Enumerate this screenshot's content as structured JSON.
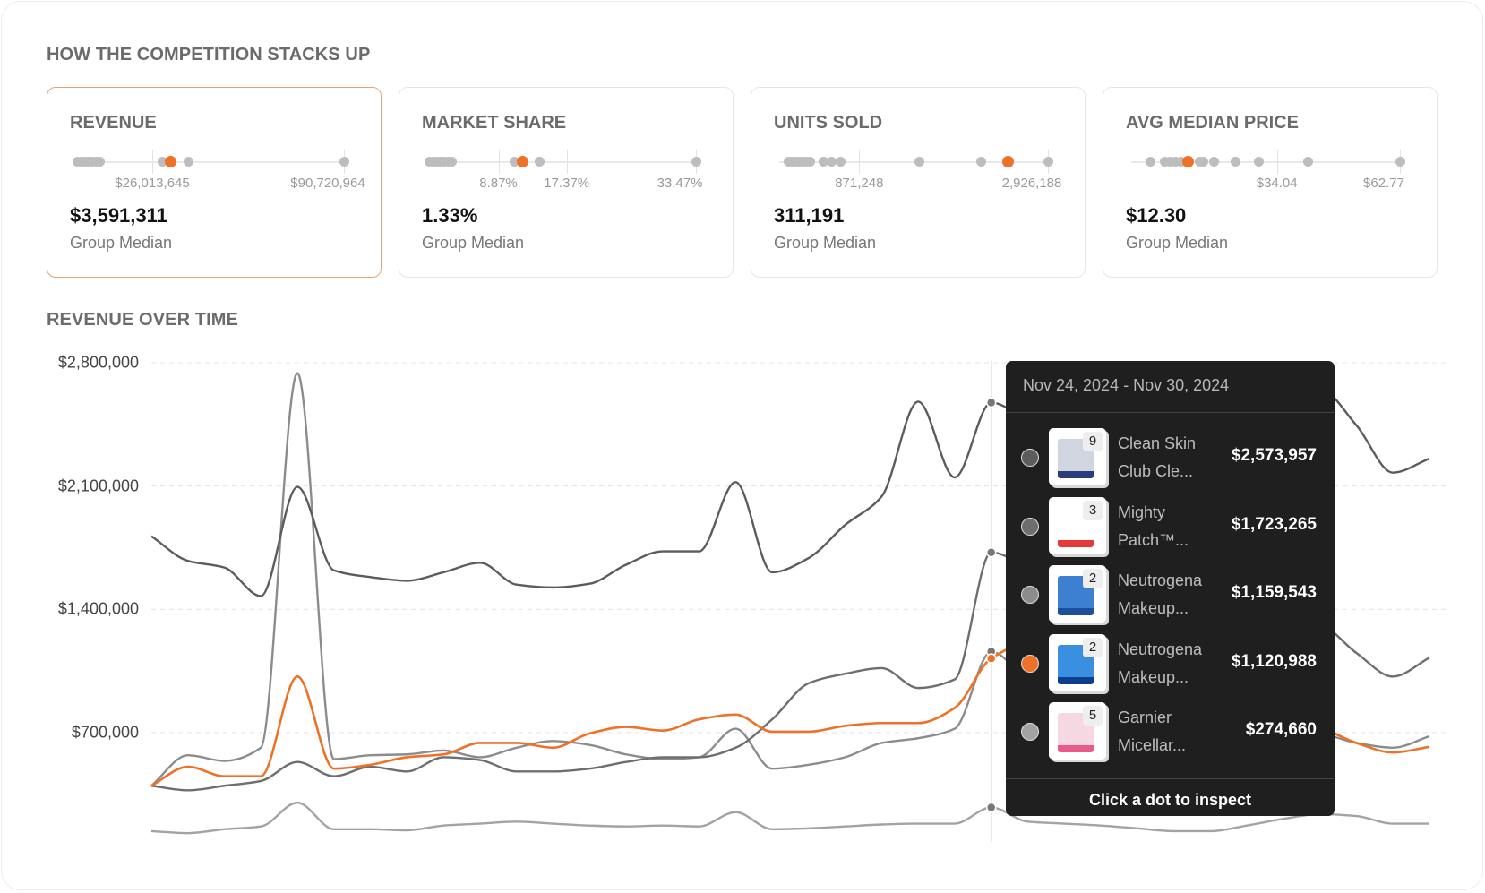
{
  "stacks": {
    "title": "HOW THE COMPETITION STACKS UP",
    "cards": [
      {
        "title": "REVENUE",
        "value": "$3,591,311",
        "sub": "Group Median",
        "active": true,
        "range": [
          0,
          90720964
        ],
        "ticks": [
          {
            "v": 26013645,
            "label": "$26,013,645"
          },
          {
            "v": 90720964,
            "label": "$90,720,964"
          }
        ],
        "dots": [
          640000,
          1900000,
          3200000,
          4500000,
          5700000,
          7000000,
          8300000,
          29400000,
          38300000,
          90720964
        ],
        "highlight": 32300000
      },
      {
        "title": "MARKET SHARE",
        "value": "1.33%",
        "sub": "Group Median",
        "active": false,
        "range": [
          0,
          33.47
        ],
        "ticks": [
          {
            "v": 8.87,
            "label": "8.87%"
          },
          {
            "v": 17.37,
            "label": "17.37%"
          },
          {
            "v": 33.47,
            "label": "33.47%"
          }
        ],
        "dots": [
          0.23,
          0.7,
          1.2,
          1.6,
          2.1,
          2.6,
          3.1,
          10.9,
          14.0,
          33.47
        ],
        "highlight": 11.9
      },
      {
        "title": "UNITS SOLD",
        "value": "311,191",
        "sub": "Group Median",
        "active": false,
        "range": [
          0,
          2926188
        ],
        "ticks": [
          {
            "v": 871248,
            "label": "871,248"
          },
          {
            "v": 2926188,
            "label": "2,926,188"
          }
        ],
        "dots": [
          100000,
          140000,
          180000,
          220000,
          261000,
          301000,
          341000,
          481000,
          571000,
          671000,
          1523000,
          2195000,
          2926188
        ],
        "highlight": 2495000
      },
      {
        "title": "AVG MEDIAN PRICE",
        "value": "$12.30",
        "sub": "Group Median",
        "active": false,
        "range": [
          0,
          62.77
        ],
        "ticks": [
          {
            "v": 34.04,
            "label": "$34.04"
          },
          {
            "v": 62.77,
            "label": "$62.77"
          }
        ],
        "dots": [
          4.54,
          7.85,
          9.09,
          10.33,
          11.56,
          16.11,
          16.93,
          19.41,
          24.37,
          29.73,
          41.3,
          62.77
        ],
        "highlight": 13.22
      }
    ]
  },
  "revenue_chart": {
    "title": "REVENUE OVER TIME"
  },
  "chart_data": {
    "type": "line",
    "title": "REVENUE OVER TIME",
    "xlabel": "",
    "ylabel": "",
    "x": "weekly periods (unlabeled)",
    "ylim": [
      0,
      2800000
    ],
    "y_ticks": [
      {
        "v": 2800000,
        "label": "$2,800,000"
      },
      {
        "v": 2100000,
        "label": "$2,100,000"
      },
      {
        "v": 1400000,
        "label": "$1,400,000"
      },
      {
        "v": 700000,
        "label": "$700,000"
      }
    ],
    "grid": true,
    "hover_index": 23,
    "series": [
      {
        "name": "Clean Skin Club Cle...",
        "color": "#5c5c5c",
        "values": [
          1815000,
          1675000,
          1637000,
          1475000,
          2095000,
          1621000,
          1583000,
          1562000,
          1610000,
          1664000,
          1540000,
          1524000,
          1545000,
          1653000,
          1729000,
          1729000,
          2122000,
          1610000,
          1691000,
          1879000,
          2041000,
          2579000,
          2149000,
          2573957,
          2499000,
          2552000,
          2606000,
          2660000,
          2714000,
          2660000,
          2687000,
          2617000,
          2649000,
          2445000,
          2176000,
          2256000
        ]
      },
      {
        "name": "Mighty Patch™...",
        "color": "#6e6e6e",
        "values": [
          398000,
          372000,
          398000,
          425000,
          533000,
          452000,
          506000,
          479000,
          560000,
          544000,
          479000,
          479000,
          495000,
          533000,
          560000,
          560000,
          614000,
          775000,
          980000,
          1034000,
          1066000,
          953000,
          1002000,
          1723265,
          1637000,
          1556000,
          1475000,
          1422000,
          1379000,
          1357000,
          1341000,
          1341000,
          1314000,
          1152000,
          1018000,
          1125000
        ]
      },
      {
        "name": "Neutrogena Makeup...",
        "color": "#8c8c8c",
        "values": [
          398000,
          571000,
          539000,
          614000,
          2741000,
          549000,
          571000,
          576000,
          598000,
          560000,
          614000,
          652000,
          630000,
          576000,
          549000,
          560000,
          722000,
          495000,
          517000,
          560000,
          641000,
          668000,
          722000,
          1159543,
          991000,
          856000,
          775000,
          732000,
          711000,
          695000,
          689000,
          689000,
          689000,
          641000,
          614000,
          679000
        ]
      },
      {
        "name": "Neutrogena Makeup...",
        "color": "#ee7127",
        "values": [
          398000,
          506000,
          452000,
          452000,
          1018000,
          495000,
          517000,
          560000,
          576000,
          641000,
          641000,
          614000,
          695000,
          732000,
          711000,
          775000,
          802000,
          705000,
          705000,
          738000,
          754000,
          754000,
          840000,
          1120988,
          1206000,
          1152000,
          1045000,
          937000,
          856000,
          802000,
          765000,
          743000,
          722000,
          641000,
          587000,
          619000
        ]
      },
      {
        "name": "Garnier Micellar...",
        "color": "#a3a3a3",
        "values": [
          140000,
          129000,
          151000,
          167000,
          302000,
          151000,
          151000,
          145000,
          172000,
          183000,
          194000,
          183000,
          172000,
          167000,
          172000,
          167000,
          248000,
          151000,
          156000,
          167000,
          178000,
          183000,
          183000,
          274660,
          194000,
          183000,
          172000,
          156000,
          140000,
          140000,
          172000,
          210000,
          237000,
          226000,
          183000,
          183000
        ]
      }
    ]
  },
  "tooltip": {
    "date_range": "Nov 24, 2024 - Nov 30, 2024",
    "rows": [
      {
        "line1": "Clean Skin",
        "line2": "Club Cle...",
        "value": "$2,573,957",
        "badge": "9",
        "dot_color": "#5c5c5c",
        "thumb": "box-icon"
      },
      {
        "line1": "Mighty",
        "line2": "Patch™...",
        "value": "$1,723,265",
        "badge": "3",
        "dot_color": "#6e6e6e",
        "thumb": "patch-pack-icon"
      },
      {
        "line1": "Neutrogena",
        "line2": "Makeup...",
        "value": "$1,159,543",
        "badge": "2",
        "dot_color": "#8c8c8c",
        "thumb": "wipes-pouch-icon"
      },
      {
        "line1": "Neutrogena",
        "line2": "Makeup...",
        "value": "$1,120,988",
        "badge": "2",
        "dot_color": "#ee7127",
        "thumb": "wipes-pack-icon"
      },
      {
        "line1": "Garnier",
        "line2": "Micellar...",
        "value": "$274,660",
        "badge": "5",
        "dot_color": "#a3a3a3",
        "thumb": "bottle-icon"
      }
    ],
    "footer": "Click a dot to inspect"
  }
}
